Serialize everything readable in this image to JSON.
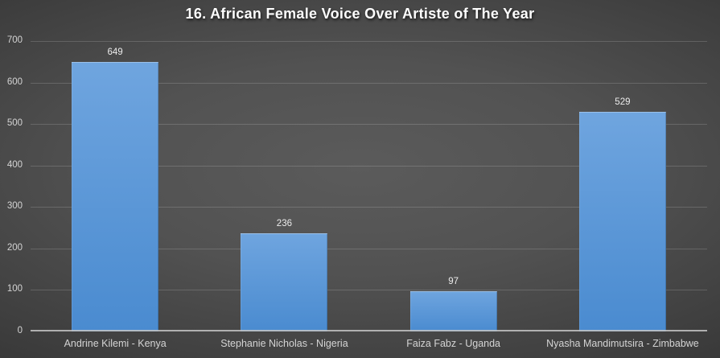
{
  "chart_data": {
    "type": "bar",
    "title": "16. African Female Voice Over Artiste of The Year",
    "categories": [
      "Andrine Kilemi - Kenya",
      "Stephanie Nicholas - Nigeria",
      "Faiza Fabz - Uganda",
      "Nyasha Mandimutsira - Zimbabwe"
    ],
    "values": [
      649,
      236,
      97,
      529
    ],
    "value_labels": [
      "649",
      "236",
      "97",
      "529"
    ],
    "xlabel": "",
    "ylabel": "",
    "ylim": [
      0,
      700
    ],
    "ytick_step": 100,
    "ytick_labels": [
      "0",
      "100",
      "200",
      "300",
      "400",
      "500",
      "600",
      "700"
    ],
    "grid": true,
    "legend": false,
    "colors": {
      "bar_top": "#6FA5DF",
      "bar_bottom": "#4A8BD0",
      "background_center": "#5b5b5b",
      "background_edge": "#252525",
      "title_text": "#fdfdfd",
      "axis_text": "#d4d4d4",
      "gridline": "rgba(255,255,255,0.16)",
      "axis_line": "#c4c4c4"
    }
  }
}
